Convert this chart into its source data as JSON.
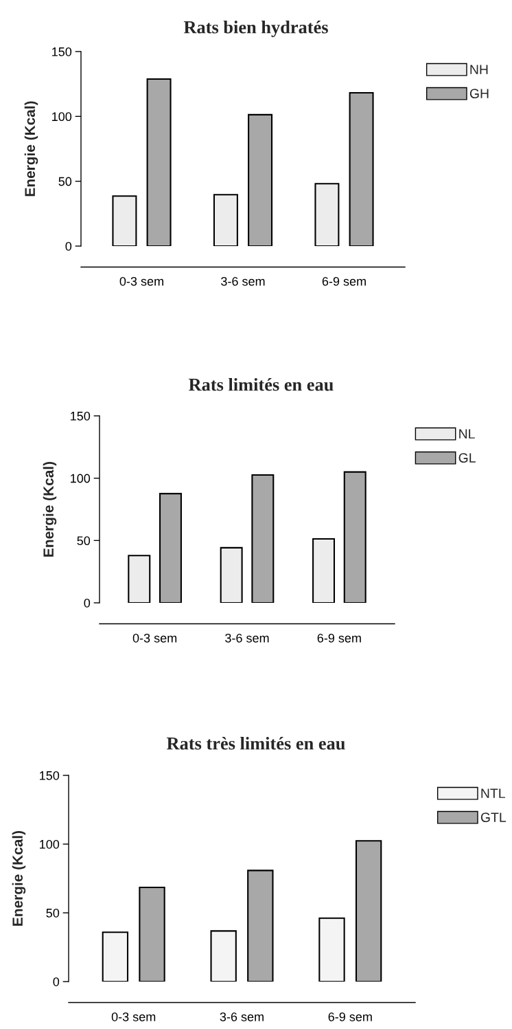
{
  "chart_data": [
    {
      "type": "bar",
      "title": "Rats bien hydratés",
      "ylabel": "Energie (Kcal)",
      "categories": [
        "0-3 sem",
        "3-6 sem",
        "6-9 sem"
      ],
      "series": [
        {
          "name": "NH",
          "color": "#ececec",
          "values": [
            38.6,
            39.6,
            48.1
          ]
        },
        {
          "name": "GH",
          "color": "#a8a8a8",
          "values": [
            128.8,
            101.3,
            118.2
          ]
        }
      ],
      "ylim": [
        0,
        150
      ],
      "yticks": [
        0,
        50,
        100,
        150
      ],
      "legend": "top right",
      "grid": false
    },
    {
      "type": "bar",
      "title": "Rats limités en eau",
      "ylabel": "Energie (Kcal)",
      "categories": [
        "0-3 sem",
        "3-6 sem",
        "6-9 sem"
      ],
      "series": [
        {
          "name": "NL",
          "color": "#ececec",
          "values": [
            37.9,
            44.2,
            51.3
          ]
        },
        {
          "name": "GL",
          "color": "#a8a8a8",
          "values": [
            87.6,
            102.6,
            105.0
          ]
        }
      ],
      "ylim": [
        0,
        150
      ],
      "yticks": [
        0,
        50,
        100,
        150
      ],
      "legend": "top right",
      "grid": false
    },
    {
      "type": "bar",
      "title": "Rats très limités en eau",
      "ylabel": "Energie (Kcal)",
      "categories": [
        "0-3 sem",
        "3-6 sem",
        "6-9 sem"
      ],
      "series": [
        {
          "name": "NTL",
          "color": "#f4f4f4",
          "values": [
            35.9,
            36.8,
            46.1
          ]
        },
        {
          "name": "GTL",
          "color": "#a8a8a8",
          "values": [
            68.5,
            80.8,
            102.4
          ]
        }
      ],
      "ylim": [
        0,
        150
      ],
      "yticks": [
        0,
        50,
        100,
        150
      ],
      "legend": "top right",
      "grid": false
    }
  ]
}
